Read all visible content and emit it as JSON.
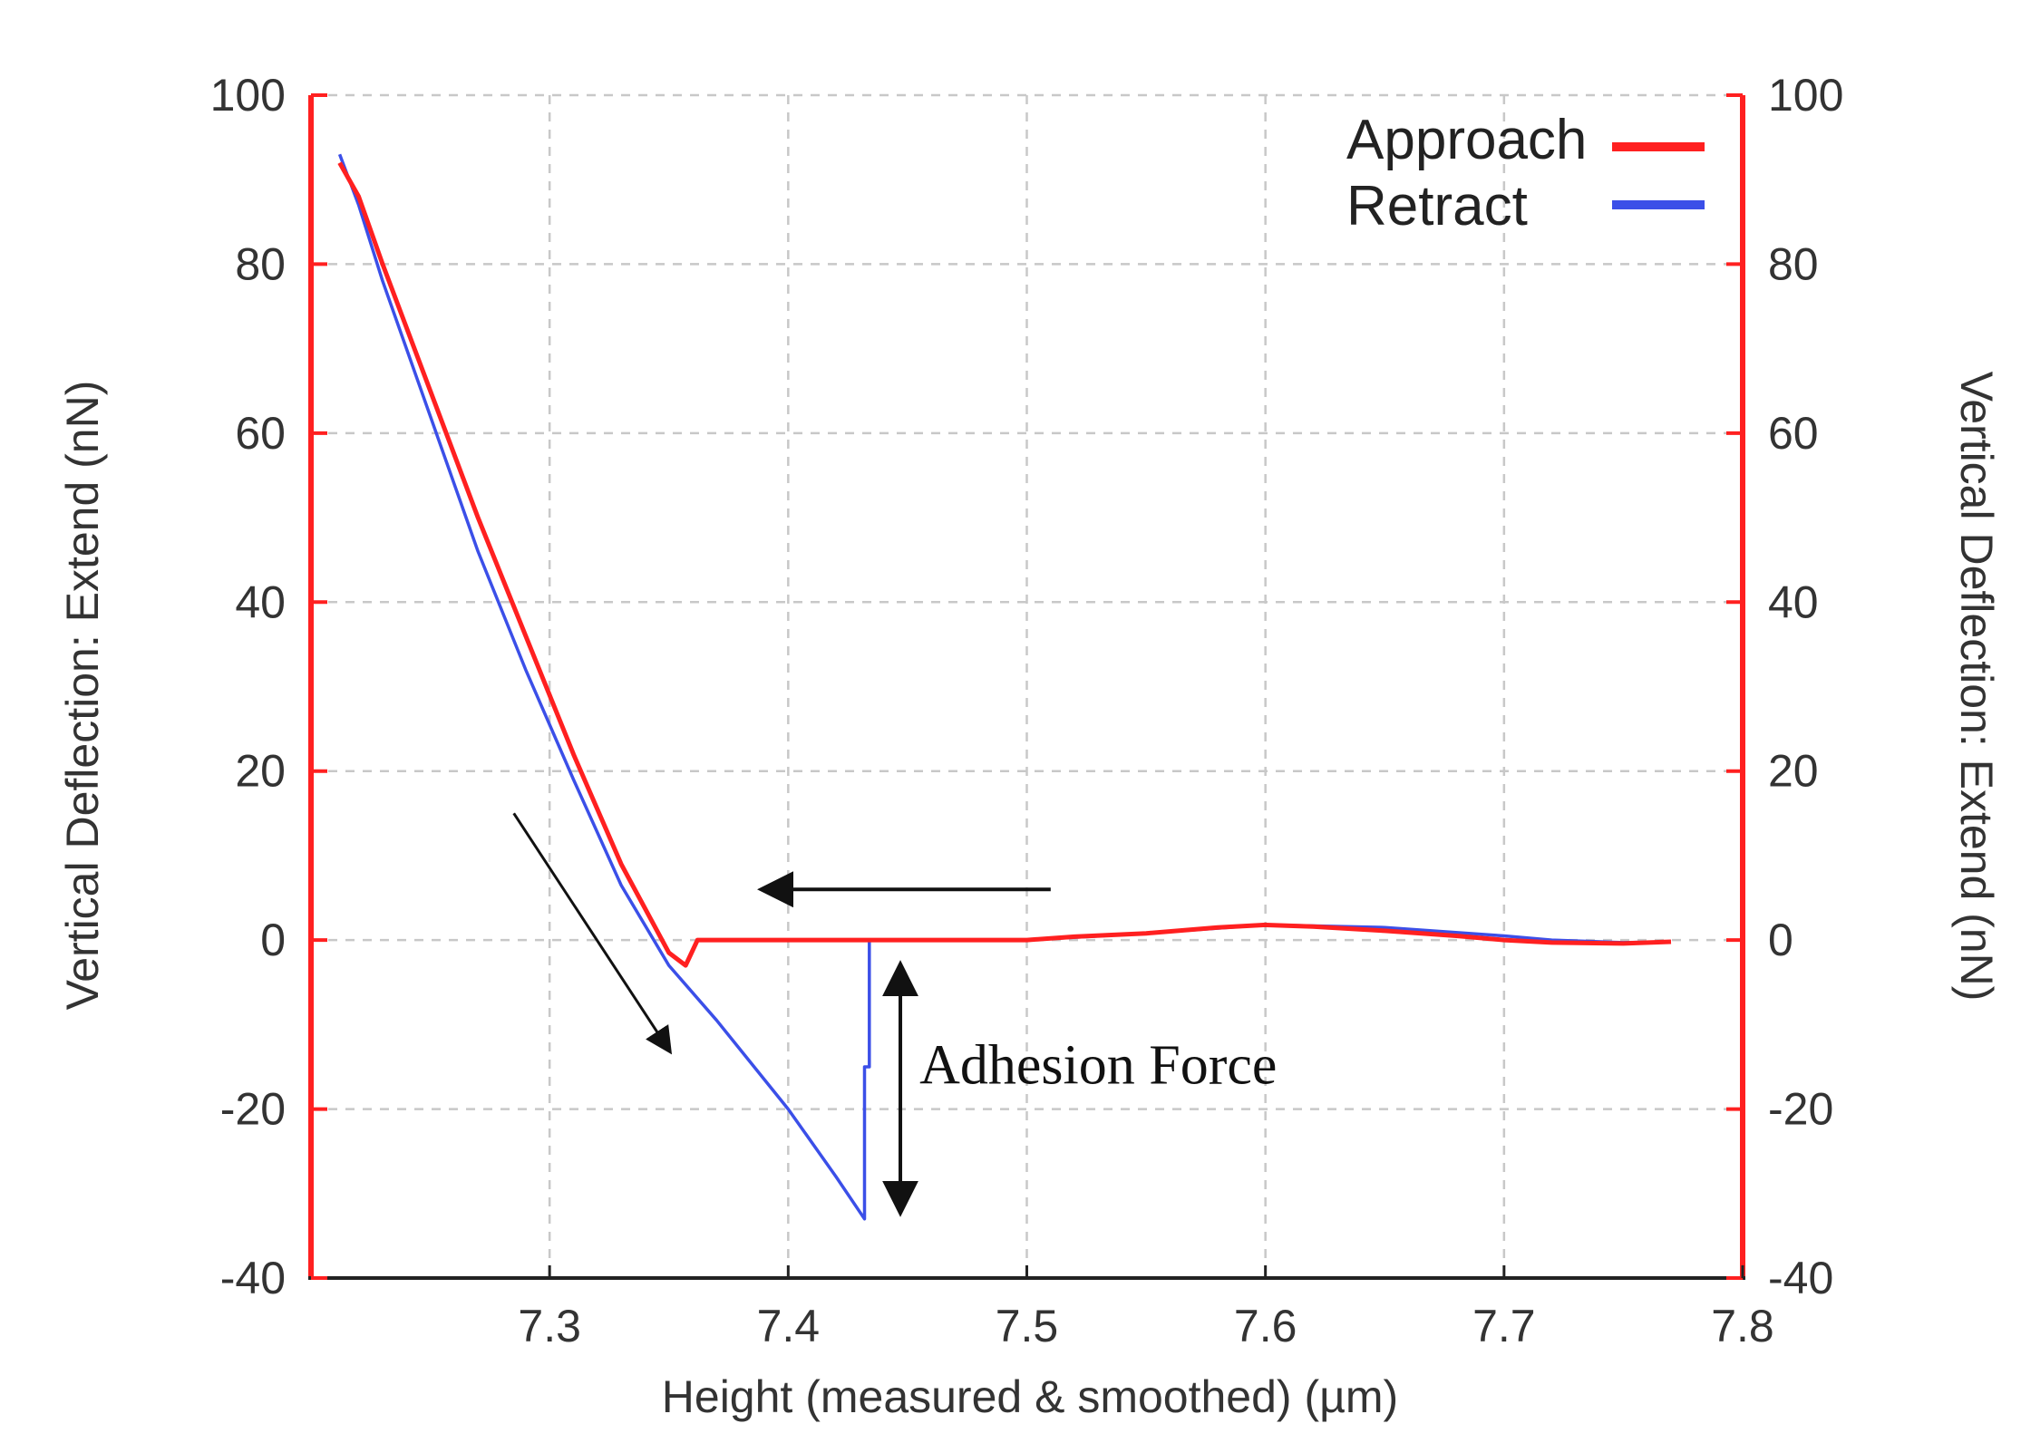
{
  "chart_data": {
    "type": "line",
    "xlabel": "Height (measured & smoothed) (µm)",
    "ylabel": "Vertical Deflection: Extend (nN)",
    "ylabel_right": "Vertical Deflection: Extend (nN)",
    "xlim": [
      7.2,
      7.8
    ],
    "ylim": [
      -40,
      100
    ],
    "x_ticks": [
      7.3,
      7.4,
      7.5,
      7.6,
      7.7,
      7.8
    ],
    "x_tick_labels": [
      "7.3",
      "7.4",
      "7.5",
      "7.6",
      "7.7",
      "7.8"
    ],
    "y_ticks": [
      -40,
      -20,
      0,
      20,
      40,
      60,
      80,
      100
    ],
    "y_tick_labels": [
      "-40",
      "-20",
      "0",
      "20",
      "40",
      "60",
      "80",
      "100"
    ],
    "grid": true,
    "legend_position": "top-right",
    "colors": {
      "approach": "#ff2020",
      "retract": "#3b4fe8",
      "axis": "#ff2020",
      "grid": "#c8c8c8"
    },
    "series": [
      {
        "name": "Approach",
        "color": "#ff2020",
        "x": [
          7.212,
          7.22,
          7.23,
          7.25,
          7.27,
          7.29,
          7.31,
          7.33,
          7.35,
          7.357,
          7.362,
          7.4,
          7.45,
          7.5,
          7.52,
          7.55,
          7.58,
          7.6,
          7.62,
          7.65,
          7.68,
          7.7,
          7.72,
          7.75,
          7.77
        ],
        "y": [
          92,
          88,
          80,
          65,
          50,
          36,
          22,
          9,
          -1.5,
          -3,
          0,
          0,
          0,
          0,
          0.4,
          0.8,
          1.5,
          1.8,
          1.6,
          1.1,
          0.5,
          0,
          -0.3,
          -0.4,
          -0.2
        ]
      },
      {
        "name": "Retract",
        "color": "#3b4fe8",
        "x": [
          7.212,
          7.22,
          7.23,
          7.25,
          7.27,
          7.29,
          7.31,
          7.33,
          7.35,
          7.37,
          7.4,
          7.42,
          7.432,
          7.432,
          7.434,
          7.434,
          7.45,
          7.5,
          7.55,
          7.6,
          7.65,
          7.7,
          7.72,
          7.75,
          7.77
        ],
        "y": [
          93,
          87,
          78,
          62,
          46,
          32,
          19,
          6.5,
          -3,
          -9.5,
          -20,
          -28,
          -33,
          -15,
          -15,
          0,
          0,
          0,
          0.8,
          1.8,
          1.5,
          0.5,
          0,
          -0.3,
          -0.2
        ]
      }
    ],
    "annotations": {
      "adhesion_label": "Adhesion Force",
      "arrow_approach_to_contact": {
        "from": [
          7.51,
          6
        ],
        "to": [
          7.39,
          6
        ]
      },
      "arrow_along_retract": {
        "from": [
          7.285,
          15
        ],
        "to": [
          7.35,
          -13
        ]
      },
      "adhesion_double_arrow": {
        "x": 7.447,
        "y_from": 0,
        "y_to": -33
      },
      "adhesion_label_anchor": {
        "x": 7.455,
        "y": -17
      }
    }
  }
}
